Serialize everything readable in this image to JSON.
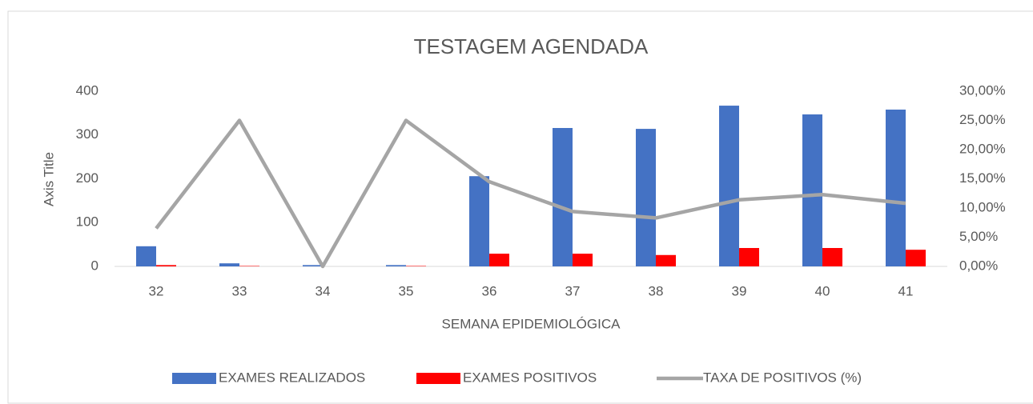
{
  "chart_data": {
    "type": "bar",
    "title": "TESTAGEM AGENDADA",
    "x_label": "SEMANA EPIDEMIOLÓGICA",
    "y_label": "Axis Title",
    "categories": [
      "32",
      "33",
      "34",
      "35",
      "36",
      "37",
      "38",
      "39",
      "40",
      "41"
    ],
    "series": [
      {
        "name": "EXAMES REALIZADOS",
        "type": "bar",
        "axis": "y",
        "color": "#4472c4",
        "values": [
          46,
          7,
          3,
          3,
          206,
          316,
          314,
          367,
          347,
          358
        ]
      },
      {
        "name": "EXAMES POSITIVOS",
        "type": "bar",
        "axis": "y",
        "color": "#ff0000",
        "values": [
          3,
          1,
          0,
          1,
          29,
          29,
          26,
          42,
          42,
          38
        ]
      },
      {
        "name": "TAXA DE POSITIVOS (%)",
        "type": "line",
        "axis": "y2",
        "color": "#a5a5a5",
        "values": [
          6.5,
          25,
          0,
          25,
          14.5,
          9.4,
          8.3,
          11.4,
          12.3,
          10.8
        ]
      }
    ],
    "ylim": [
      0,
      400
    ],
    "yticks": [
      0,
      100,
      200,
      300,
      400
    ],
    "y2lim": [
      0,
      30
    ],
    "y2ticks": [
      {
        "value": 0,
        "label": "0,00%"
      },
      {
        "value": 5,
        "label": "5,00%"
      },
      {
        "value": 10,
        "label": "10,00%"
      },
      {
        "value": 15,
        "label": "15,00%"
      },
      {
        "value": 20,
        "label": "20,00%"
      },
      {
        "value": 25,
        "label": "25,00%"
      },
      {
        "value": 30,
        "label": "30,00%"
      }
    ],
    "grid": false,
    "legend": "bottom"
  }
}
